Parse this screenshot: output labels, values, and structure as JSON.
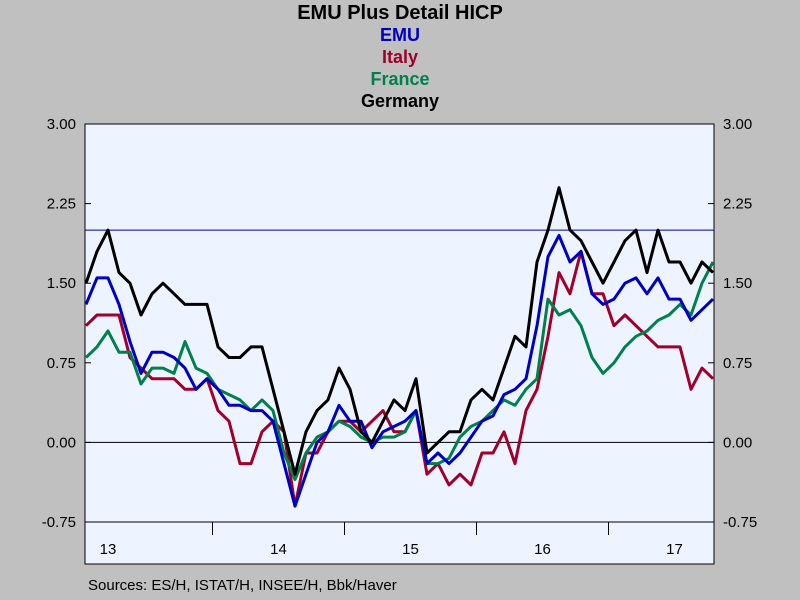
{
  "chart_data": {
    "type": "line",
    "title": "EMU Plus Detail HICP",
    "legend_placement": "top-center (stacked under title)",
    "ylim": [
      -0.75,
      3.0
    ],
    "y_ticks": [
      "3.00",
      "2.25",
      "1.50",
      "0.75",
      "0.00",
      "-0.75"
    ],
    "y_tick_values": [
      3.0,
      2.25,
      1.5,
      0.75,
      0.0,
      -0.75
    ],
    "x_labels": [
      "13",
      "14",
      "15",
      "16",
      "17"
    ],
    "x_start": "2013-01",
    "reference_lines": [
      0.0,
      2.0
    ],
    "grid": false,
    "series": [
      {
        "name": "EMU",
        "color": "#0000c0",
        "values": [
          1.3,
          1.55,
          1.55,
          1.3,
          0.95,
          0.65,
          0.85,
          0.85,
          0.8,
          0.7,
          0.5,
          0.6,
          0.5,
          0.35,
          0.35,
          0.3,
          0.3,
          0.2,
          -0.2,
          -0.6,
          -0.3,
          0.0,
          0.1,
          0.35,
          0.2,
          0.2,
          -0.05,
          0.1,
          0.15,
          0.2,
          0.3,
          -0.2,
          -0.1,
          -0.2,
          -0.1,
          0.05,
          0.2,
          0.25,
          0.45,
          0.5,
          0.6,
          1.1,
          1.75,
          1.95,
          1.7,
          1.8,
          1.4,
          1.3,
          1.35,
          1.5,
          1.55,
          1.4,
          1.55,
          1.35,
          1.35,
          1.15,
          1.25,
          1.35
        ]
      },
      {
        "name": "Italy",
        "color": "#a0002a",
        "values": [
          1.1,
          1.2,
          1.2,
          1.2,
          0.8,
          0.7,
          0.6,
          0.6,
          0.6,
          0.5,
          0.5,
          0.6,
          0.3,
          0.2,
          -0.2,
          -0.2,
          0.1,
          0.2,
          0.1,
          -0.6,
          -0.1,
          -0.1,
          0.1,
          0.2,
          0.2,
          0.1,
          0.2,
          0.3,
          0.1,
          0.1,
          0.3,
          -0.3,
          -0.2,
          -0.4,
          -0.3,
          -0.4,
          -0.1,
          -0.1,
          0.1,
          -0.2,
          0.3,
          0.5,
          1.0,
          1.6,
          1.4,
          1.8,
          1.4,
          1.4,
          1.1,
          1.2,
          1.1,
          1.0,
          0.9,
          0.9,
          0.9,
          0.5,
          0.7,
          0.6
        ]
      },
      {
        "name": "France",
        "color": "#00804a",
        "values": [
          0.8,
          0.9,
          1.05,
          0.85,
          0.85,
          0.55,
          0.7,
          0.7,
          0.65,
          0.95,
          0.7,
          0.65,
          0.5,
          0.45,
          0.4,
          0.3,
          0.4,
          0.3,
          -0.1,
          -0.35,
          -0.1,
          0.05,
          0.1,
          0.2,
          0.15,
          0.05,
          0.0,
          0.05,
          0.05,
          0.1,
          0.3,
          -0.2,
          -0.2,
          -0.15,
          0.05,
          0.15,
          0.2,
          0.3,
          0.4,
          0.35,
          0.5,
          0.6,
          1.35,
          1.2,
          1.25,
          1.1,
          0.8,
          0.65,
          0.75,
          0.9,
          1.0,
          1.05,
          1.15,
          1.2,
          1.3,
          1.2,
          1.5,
          1.7
        ]
      },
      {
        "name": "Germany",
        "color": "#000000",
        "values": [
          1.5,
          1.8,
          2.0,
          1.6,
          1.5,
          1.2,
          1.4,
          1.5,
          1.4,
          1.3,
          1.3,
          1.3,
          0.9,
          0.8,
          0.8,
          0.9,
          0.9,
          0.5,
          0.1,
          -0.3,
          0.1,
          0.3,
          0.4,
          0.7,
          0.5,
          0.1,
          0.0,
          0.2,
          0.4,
          0.3,
          0.6,
          -0.1,
          0.0,
          0.1,
          0.1,
          0.4,
          0.5,
          0.4,
          0.7,
          1.0,
          0.9,
          1.7,
          2.0,
          2.4,
          2.0,
          1.9,
          1.7,
          1.5,
          1.7,
          1.9,
          2.0,
          1.6,
          2.0,
          1.7,
          1.7,
          1.5,
          1.7,
          1.6
        ]
      }
    ]
  },
  "sources": "Sources:  ES/H, ISTAT/H, INSEE/H, Bbk/Haver"
}
